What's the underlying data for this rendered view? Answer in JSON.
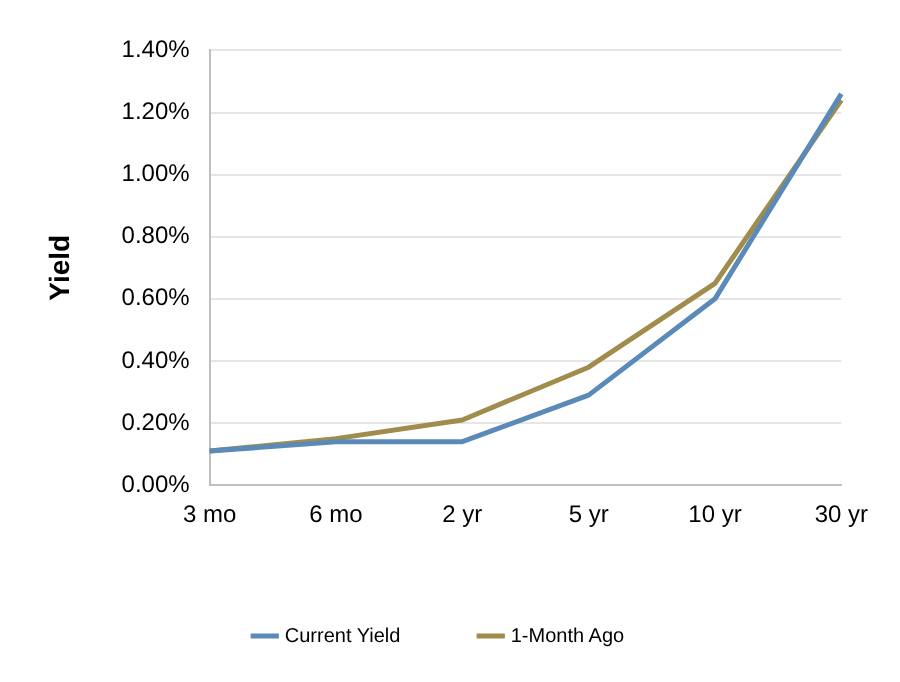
{
  "chart_data": {
    "type": "line",
    "ylabel": "Yield",
    "categories": [
      "3 mo",
      "6 mo",
      "2 yr",
      "5 yr",
      "10 yr",
      "30 yr"
    ],
    "series": [
      {
        "name": "Current Yield",
        "color": "#5b8ab8",
        "values": [
          0.11,
          0.14,
          0.14,
          0.29,
          0.6,
          1.26
        ]
      },
      {
        "name": "1-Month Ago",
        "color": "#a08c4c",
        "values": [
          0.11,
          0.15,
          0.21,
          0.38,
          0.65,
          1.24
        ]
      }
    ],
    "ylim": [
      0,
      1.4
    ],
    "yticks": [
      {
        "value": 0,
        "label": "0.00%"
      },
      {
        "value": 0.2,
        "label": "0.20%"
      },
      {
        "value": 0.4,
        "label": "0.40%"
      },
      {
        "value": 0.6,
        "label": "0.60%"
      },
      {
        "value": 0.8,
        "label": "0.80%"
      },
      {
        "value": 1,
        "label": "1.00%"
      },
      {
        "value": 1.2,
        "label": "1.20%"
      },
      {
        "value": 1.4,
        "label": "1.40%"
      }
    ],
    "grid": "y",
    "legend": "bottom",
    "marker": "none",
    "line_style": "solid"
  }
}
